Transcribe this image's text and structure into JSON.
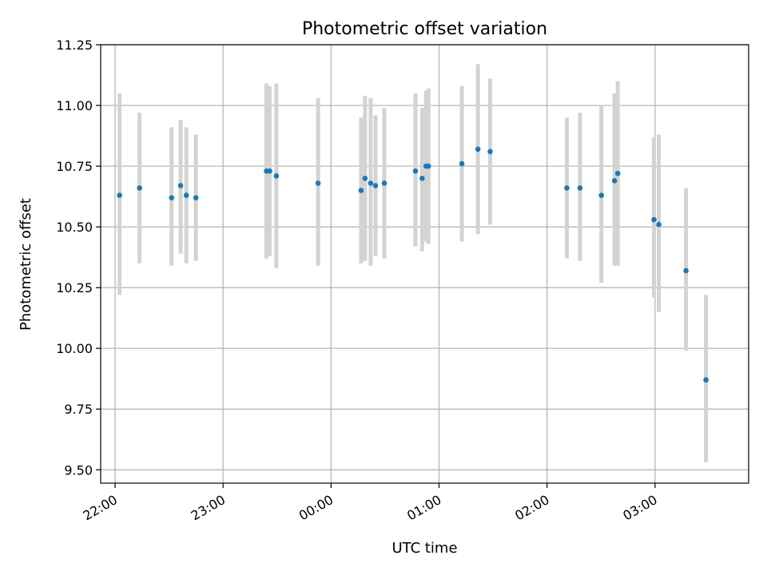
{
  "chart_data": {
    "type": "scatter",
    "title": "Photometric offset variation",
    "xlabel": "UTC time",
    "ylabel": "Photometric offset",
    "xlim_minutes": [
      -8,
      352
    ],
    "ylim": [
      9.445,
      11.25
    ],
    "yticks": [
      {
        "v": 9.5,
        "label": "9.50"
      },
      {
        "v": 9.75,
        "label": "9.75"
      },
      {
        "v": 10.0,
        "label": "10.00"
      },
      {
        "v": 10.25,
        "label": "10.25"
      },
      {
        "v": 10.5,
        "label": "10.50"
      },
      {
        "v": 10.75,
        "label": "10.75"
      },
      {
        "v": 11.0,
        "label": "11.00"
      },
      {
        "v": 11.25,
        "label": "11.25"
      }
    ],
    "xticks": [
      {
        "t": 0,
        "label": "22:00"
      },
      {
        "t": 60,
        "label": "23:00"
      },
      {
        "t": 120,
        "label": "00:00"
      },
      {
        "t": 180,
        "label": "01:00"
      },
      {
        "t": 240,
        "label": "02:00"
      },
      {
        "t": 300,
        "label": "03:00"
      }
    ],
    "grid": true,
    "colors": {
      "point": "#1f77b4",
      "errorbar": "#d3d3d3",
      "grid": "#b0b0b0",
      "axis": "#000000"
    },
    "points": [
      {
        "t": 2.5,
        "y": 10.63,
        "lo": 10.22,
        "hi": 11.05
      },
      {
        "t": 13.6,
        "y": 10.66,
        "lo": 10.35,
        "hi": 10.97
      },
      {
        "t": 31.4,
        "y": 10.62,
        "lo": 10.34,
        "hi": 10.91
      },
      {
        "t": 36.4,
        "y": 10.67,
        "lo": 10.39,
        "hi": 10.94
      },
      {
        "t": 39.6,
        "y": 10.63,
        "lo": 10.35,
        "hi": 10.91
      },
      {
        "t": 44.9,
        "y": 10.62,
        "lo": 10.36,
        "hi": 10.88
      },
      {
        "t": 84.1,
        "y": 10.73,
        "lo": 10.37,
        "hi": 11.09
      },
      {
        "t": 85.9,
        "y": 10.73,
        "lo": 10.38,
        "hi": 11.08
      },
      {
        "t": 89.6,
        "y": 10.71,
        "lo": 10.33,
        "hi": 11.09
      },
      {
        "t": 112.8,
        "y": 10.68,
        "lo": 10.34,
        "hi": 11.03
      },
      {
        "t": 136.7,
        "y": 10.65,
        "lo": 10.35,
        "hi": 10.95
      },
      {
        "t": 138.9,
        "y": 10.7,
        "lo": 10.36,
        "hi": 11.04
      },
      {
        "t": 142.0,
        "y": 10.68,
        "lo": 10.34,
        "hi": 11.03
      },
      {
        "t": 144.7,
        "y": 10.67,
        "lo": 10.38,
        "hi": 10.96
      },
      {
        "t": 149.6,
        "y": 10.68,
        "lo": 10.37,
        "hi": 10.99
      },
      {
        "t": 166.9,
        "y": 10.73,
        "lo": 10.42,
        "hi": 11.05
      },
      {
        "t": 170.6,
        "y": 10.7,
        "lo": 10.4,
        "hi": 10.99
      },
      {
        "t": 172.8,
        "y": 10.75,
        "lo": 10.44,
        "hi": 11.06
      },
      {
        "t": 174.1,
        "y": 10.75,
        "lo": 10.43,
        "hi": 11.07
      },
      {
        "t": 192.7,
        "y": 10.76,
        "lo": 10.44,
        "hi": 11.08
      },
      {
        "t": 201.6,
        "y": 10.82,
        "lo": 10.47,
        "hi": 11.17
      },
      {
        "t": 208.4,
        "y": 10.81,
        "lo": 10.51,
        "hi": 11.11
      },
      {
        "t": 251.0,
        "y": 10.66,
        "lo": 10.37,
        "hi": 10.95
      },
      {
        "t": 258.3,
        "y": 10.66,
        "lo": 10.36,
        "hi": 10.97
      },
      {
        "t": 270.2,
        "y": 10.63,
        "lo": 10.27,
        "hi": 11.0
      },
      {
        "t": 277.5,
        "y": 10.69,
        "lo": 10.34,
        "hi": 11.05
      },
      {
        "t": 279.3,
        "y": 10.72,
        "lo": 10.34,
        "hi": 11.1
      },
      {
        "t": 299.4,
        "y": 10.53,
        "lo": 10.21,
        "hi": 10.87
      },
      {
        "t": 302.1,
        "y": 10.51,
        "lo": 10.15,
        "hi": 10.88
      },
      {
        "t": 317.2,
        "y": 10.32,
        "lo": 9.99,
        "hi": 10.66
      },
      {
        "t": 328.3,
        "y": 9.87,
        "lo": 9.53,
        "hi": 10.22
      }
    ]
  }
}
